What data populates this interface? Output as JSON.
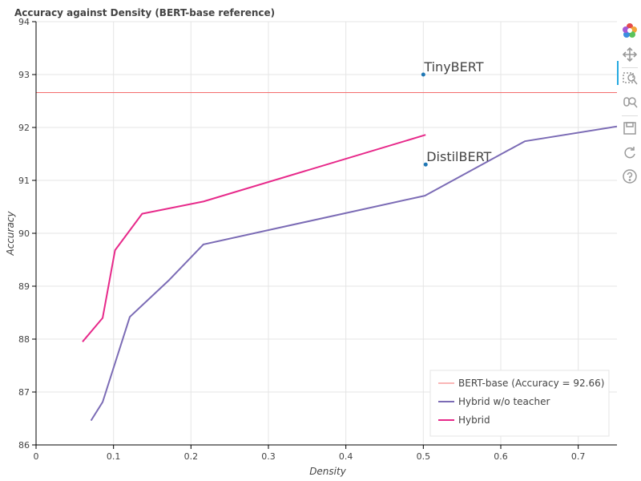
{
  "chart_data": {
    "type": "line",
    "title": "Accuracy against Density (BERT-base reference)",
    "xlabel": "Density",
    "ylabel": "Accuracy",
    "xlim": [
      0,
      0.75
    ],
    "ylim": [
      86,
      94
    ],
    "x_ticks": [
      0,
      0.1,
      0.2,
      0.3,
      0.4,
      0.5,
      0.6,
      0.7
    ],
    "x_tick_labels": [
      "0",
      "0.1",
      "0.2",
      "0.3",
      "0.4",
      "0.5",
      "0.6",
      "0.7"
    ],
    "y_ticks": [
      86,
      87,
      88,
      89,
      90,
      91,
      92,
      93,
      94
    ],
    "y_tick_labels": [
      "86",
      "87",
      "88",
      "89",
      "90",
      "91",
      "92",
      "93",
      "94"
    ],
    "grid": true,
    "legend_position": "bottom-right",
    "reference_line": {
      "name": "BERT-base (Accuracy = 92.66)",
      "y": 92.66,
      "color": "#f46d6d"
    },
    "series": [
      {
        "name": "Hybrid w/o teacher",
        "color": "#7b6bb5",
        "x": [
          0.071,
          0.086,
          0.121,
          0.172,
          0.216,
          0.502,
          0.631,
          0.75
        ],
        "y": [
          86.46,
          86.81,
          88.42,
          89.12,
          89.79,
          90.71,
          91.74,
          92.02
        ]
      },
      {
        "name": "Hybrid",
        "color": "#e7298a",
        "x": [
          0.06,
          0.086,
          0.102,
          0.137,
          0.216,
          0.503
        ],
        "y": [
          87.95,
          88.4,
          89.68,
          90.37,
          90.6,
          91.86
        ]
      }
    ],
    "points": [
      {
        "label": "TinyBERT",
        "x": 0.5,
        "y": 93.0,
        "color": "#1f77b4"
      },
      {
        "label": "DistilBERT",
        "x": 0.503,
        "y": 91.3,
        "color": "#1f77b4"
      }
    ]
  },
  "toolbar": {
    "tools": [
      {
        "name": "bokeh-logo-icon"
      },
      {
        "name": "pan-icon"
      },
      {
        "name": "box-zoom-icon"
      },
      {
        "name": "wheel-zoom-icon"
      },
      {
        "name": "save-icon"
      },
      {
        "name": "reset-icon"
      },
      {
        "name": "help-icon"
      }
    ]
  }
}
